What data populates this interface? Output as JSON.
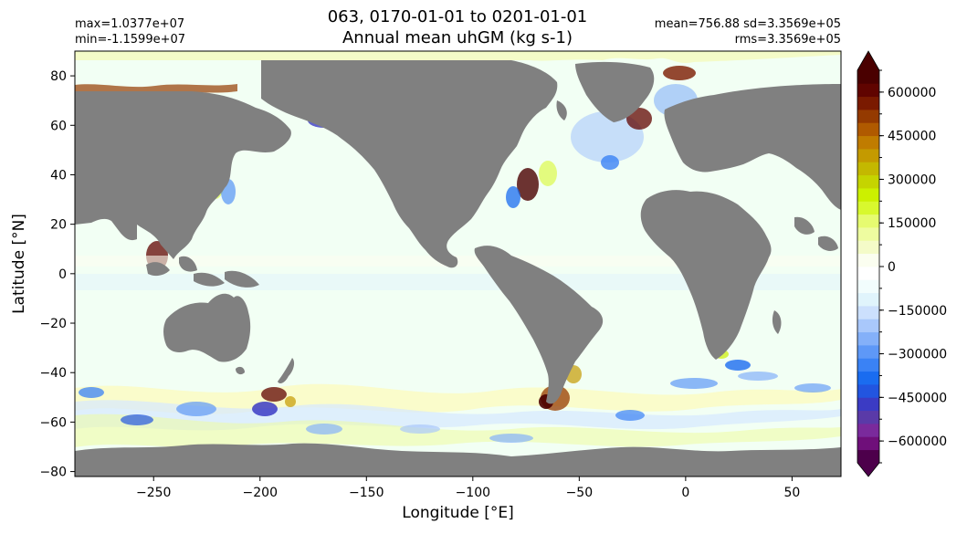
{
  "title_line1": "063, 0170-01-01 to 0201-01-01",
  "title_line2": "Annual mean uhGM (kg s-1)",
  "stats": {
    "max": "max=1.0377e+07",
    "min": "min=-1.1599e+07",
    "mean_sd": "mean=756.88 sd=3.3569e+05",
    "rms": "rms=3.3569e+05"
  },
  "chart_data": {
    "type": "heatmap",
    "title": "063, 0170-01-01 to 0201-01-01 Annual mean uhGM (kg s-1)",
    "xlabel": "Longitude [°E]",
    "ylabel": "Latitude [°N]",
    "xlim": [
      -287,
      73
    ],
    "ylim": [
      -82,
      90
    ],
    "xticks": [
      -250,
      -200,
      -150,
      -100,
      -50,
      0,
      50
    ],
    "xtick_labels": [
      "−250",
      "−200",
      "−150",
      "−100",
      "−50",
      "0",
      "50"
    ],
    "yticks": [
      -80,
      -60,
      -40,
      -20,
      0,
      20,
      40,
      60,
      80
    ],
    "ytick_labels": [
      "−80",
      "−60",
      "−40",
      "−20",
      "0",
      "20",
      "40",
      "60",
      "80"
    ],
    "land_color": "#808080",
    "colorbar": {
      "range": [
        -675000,
        675000
      ],
      "extend": "both",
      "ticks": [
        -600000,
        -450000,
        -300000,
        -150000,
        0,
        150000,
        300000,
        450000,
        600000
      ],
      "tick_labels": [
        "−600000",
        "−450000",
        "−300000",
        "−150000",
        "0",
        "150000",
        "300000",
        "450000",
        "600000"
      ],
      "colors": [
        "#4d004b",
        "#6f0f7a",
        "#7a2a9c",
        "#5a3aa8",
        "#3b3bc4",
        "#2255e0",
        "#1a6cf0",
        "#3a82f5",
        "#5e98f7",
        "#84b0f9",
        "#a9c8fb",
        "#cce0fd",
        "#e0f4fc",
        "#f2fdfd",
        "#ffffff",
        "#fbfef0",
        "#f4fbc8",
        "#eefca0",
        "#e6fb70",
        "#d8f82e",
        "#ccf000",
        "#c5d400",
        "#c4b800",
        "#c49a00",
        "#c07c00",
        "#b05a00",
        "#943a00",
        "#7a1a00",
        "#600400",
        "#4a0000"
      ]
    },
    "notable_features": [
      "Strong positive/negative couplets along western boundary currents (Kuroshio, Gulf Stream, Agulhas)",
      "Banded alternating values in the Southern Ocean near 50°S–60°S",
      "Near-zero values over most ocean interiors"
    ]
  }
}
